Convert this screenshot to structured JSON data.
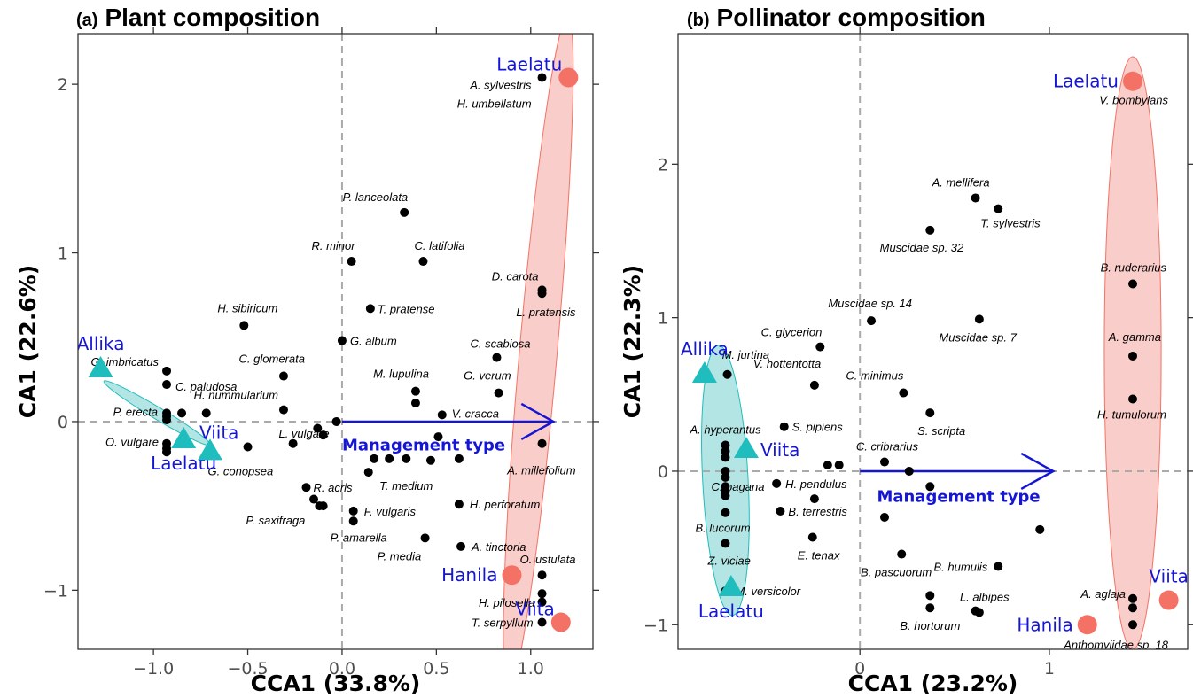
{
  "panels": [
    {
      "tag": "(a)",
      "title": "Plant composition"
    },
    {
      "tag": "(b)",
      "title": "Pollinator composition"
    }
  ],
  "colors": {
    "species_points": "#000000",
    "reference_sites": "#f47265",
    "reference_ellipse": "#f8c4c0",
    "managed_sites": "#1fbdbd",
    "managed_ellipse": "#a6e0df",
    "site_labels": "#1515d6",
    "arrow": "#1515d6",
    "zero_lines": "#aaaaaa"
  },
  "chart_data": [
    {
      "type": "scatter",
      "title": "Plant composition",
      "xlabel": "CCA1 (33.8%)",
      "ylabel": "CA1 (22.6%)",
      "xlim": [
        -1.4,
        1.33
      ],
      "ylim": [
        -1.35,
        2.3
      ],
      "xticks": [
        -1.0,
        -0.5,
        0.0,
        0.5,
        1.0
      ],
      "xtick_labels": [
        "−1.0",
        "−0.5",
        "0.0",
        "0.5",
        "1.0"
      ],
      "yticks": [
        -1,
        0,
        1,
        2
      ],
      "ytick_labels": [
        "−1",
        "0",
        "1",
        "2"
      ],
      "grid": false,
      "zero_lines": true,
      "arrow": {
        "label": "Management type",
        "x0": 0,
        "y0": 0,
        "x1": 1.12,
        "y1": 0
      },
      "species": [
        {
          "label": "A. sylvestris",
          "x": 1.06,
          "y": 2.04
        },
        {
          "label": "H. umbellatum",
          "x": null,
          "y": null
        },
        {
          "label": "P. lanceolata",
          "x": 0.33,
          "y": 1.24
        },
        {
          "label": "R. minor",
          "x": 0.05,
          "y": 0.95
        },
        {
          "label": "C. latifolia",
          "x": 0.43,
          "y": 0.95
        },
        {
          "label": "D. carota",
          "x": 1.06,
          "y": 0.78
        },
        {
          "label": "L. pratensis",
          "x": 1.06,
          "y": 0.76
        },
        {
          "label": "T. pratense",
          "x": 0.15,
          "y": 0.67
        },
        {
          "label": "H. sibiricum",
          "x": -0.52,
          "y": 0.57
        },
        {
          "label": "G. album",
          "x": 0.0,
          "y": 0.48
        },
        {
          "label": "C. scabiosa",
          "x": 0.82,
          "y": 0.38
        },
        {
          "label": "G. imbricatus",
          "x": -0.93,
          "y": 0.3
        },
        {
          "label": "C. glomerata",
          "x": -0.31,
          "y": 0.27
        },
        {
          "label": "C. paludosa",
          "x": -0.93,
          "y": 0.22
        },
        {
          "label": "M. lupulina",
          "x": 0.39,
          "y": 0.18
        },
        {
          "label": "G. verum",
          "x": 0.83,
          "y": 0.17
        },
        {
          "label": "H. nummularium",
          "x": -0.31,
          "y": 0.07
        },
        {
          "label": "P. erecta",
          "x": -0.93,
          "y": 0.05
        },
        {
          "label": "V. cracca",
          "x": 0.53,
          "y": 0.04
        },
        {
          "label": "L. vulgare",
          "x": -0.03,
          "y": 0.0
        },
        {
          "label": "O. vulgare",
          "x": -0.93,
          "y": -0.13
        },
        {
          "label": "G. conopsea",
          "x": -0.5,
          "y": -0.15
        },
        {
          "label": "A. millefolium",
          "x": 1.06,
          "y": -0.13
        },
        {
          "label": "T. medium",
          "x": 0.25,
          "y": -0.22
        },
        {
          "label": "R. acris",
          "x": -0.19,
          "y": -0.39
        },
        {
          "label": "P. saxifraga",
          "x": -0.12,
          "y": -0.5
        },
        {
          "label": "F. vulgaris",
          "x": 0.06,
          "y": -0.53
        },
        {
          "label": "P. amarella",
          "x": 0.06,
          "y": -0.59
        },
        {
          "label": "H. perforatum",
          "x": 0.62,
          "y": -0.49
        },
        {
          "label": "P. media",
          "x": 0.44,
          "y": -0.69
        },
        {
          "label": "A. tinctoria",
          "x": 0.63,
          "y": -0.74
        },
        {
          "label": "O. ustulata",
          "x": 1.06,
          "y": -0.91
        },
        {
          "label": "H. pilosella",
          "x": 1.06,
          "y": -1.02
        },
        {
          "label": "T. serpyllum",
          "x": 1.06,
          "y": -1.19
        }
      ],
      "extra_points": [
        {
          "x": -0.93,
          "y": 0.03
        },
        {
          "x": -0.93,
          "y": 0.01
        },
        {
          "x": -0.85,
          "y": 0.05
        },
        {
          "x": -0.72,
          "y": 0.05
        },
        {
          "x": -0.93,
          "y": -0.16
        },
        {
          "x": -0.93,
          "y": -0.18
        },
        {
          "x": -0.13,
          "y": -0.04
        },
        {
          "x": -0.1,
          "y": -0.08
        },
        {
          "x": -0.26,
          "y": -0.13
        },
        {
          "x": 0.39,
          "y": 0.11
        },
        {
          "x": 0.51,
          "y": -0.09
        },
        {
          "x": 0.17,
          "y": -0.22
        },
        {
          "x": 0.34,
          "y": -0.22
        },
        {
          "x": 0.47,
          "y": -0.23
        },
        {
          "x": 0.62,
          "y": -0.22
        },
        {
          "x": 0.14,
          "y": -0.3
        },
        {
          "x": -0.15,
          "y": -0.46
        },
        {
          "x": -0.1,
          "y": -0.5
        },
        {
          "x": 1.06,
          "y": -1.07
        }
      ],
      "sites": [
        {
          "group": "reference",
          "label": "Laelatu",
          "x": 1.2,
          "y": 2.04,
          "label_pos": "above-left"
        },
        {
          "group": "reference",
          "label": "Hanila",
          "x": 0.9,
          "y": -0.91,
          "label_pos": "left"
        },
        {
          "group": "reference",
          "label": "Viita",
          "x": 1.16,
          "y": -1.19,
          "label_pos": "above-left"
        },
        {
          "group": "managed",
          "label": "Allika",
          "x": -1.28,
          "y": 0.32,
          "label_pos": "above"
        },
        {
          "group": "managed",
          "label": "Laelatu",
          "x": -0.84,
          "y": -0.1,
          "label_pos": "below"
        },
        {
          "group": "managed",
          "label": "Viita",
          "x": -0.7,
          "y": -0.17,
          "label_pos": "above-right"
        }
      ],
      "ellipses": [
        {
          "group": "reference",
          "cx": 1.04,
          "cy": 0.41,
          "rx": 0.1,
          "ry": 2.0,
          "rotate_deg": 5
        },
        {
          "group": "managed",
          "cx": -0.98,
          "cy": 0.05,
          "rx": 0.33,
          "ry": 0.035,
          "rotate_deg": 31
        }
      ]
    },
    {
      "type": "scatter",
      "title": "Pollinator composition",
      "xlabel": "CCA1 (23.2%)",
      "ylabel": "CA1 (22.3%)",
      "xlim": [
        -0.96,
        1.73
      ],
      "ylim": [
        -1.16,
        2.85
      ],
      "xticks": [
        0,
        1
      ],
      "xtick_labels": [
        "0",
        "1"
      ],
      "yticks": [
        -1,
        0,
        1,
        2
      ],
      "ytick_labels": [
        "−1",
        "0",
        "1",
        "2"
      ],
      "grid": false,
      "zero_lines": true,
      "arrow": {
        "label": "Management type",
        "x0": 0,
        "y0": 0,
        "x1": 1.02,
        "y1": 0
      },
      "species": [
        {
          "label": "V. bombylans",
          "x": 1.44,
          "y": 2.54
        },
        {
          "label": "A. mellifera",
          "x": 0.61,
          "y": 1.78
        },
        {
          "label": "T. sylvestris",
          "x": 0.73,
          "y": 1.71
        },
        {
          "label": "Muscidae sp. 32",
          "x": 0.37,
          "y": 1.57
        },
        {
          "label": "B. ruderarius",
          "x": 1.44,
          "y": 1.22
        },
        {
          "label": "Muscidae sp. 14",
          "x": 0.06,
          "y": 0.98
        },
        {
          "label": "Muscidae sp. 7",
          "x": 0.63,
          "y": 0.99
        },
        {
          "label": "C. glycerion",
          "x": -0.21,
          "y": 0.81
        },
        {
          "label": "A. gamma",
          "x": 1.44,
          "y": 0.75
        },
        {
          "label": "M. jurtina",
          "x": -0.7,
          "y": 0.63
        },
        {
          "label": "V. hottentotta",
          "x": -0.24,
          "y": 0.56
        },
        {
          "label": "C. minimus",
          "x": 0.23,
          "y": 0.51
        },
        {
          "label": "H. tumulorum",
          "x": 1.44,
          "y": 0.47
        },
        {
          "label": "S. scripta",
          "x": 0.37,
          "y": 0.38
        },
        {
          "label": "S. pipiens",
          "x": -0.4,
          "y": 0.29
        },
        {
          "label": "A. hyperantus",
          "x": -0.71,
          "y": 0.17
        },
        {
          "label": "C. cribrarius",
          "x": 0.13,
          "y": 0.06
        },
        {
          "label": "C. pagana",
          "x": -0.71,
          "y": 0.0
        },
        {
          "label": "H. pendulus",
          "x": -0.44,
          "y": -0.08
        },
        {
          "label": "B. terrestris",
          "x": -0.42,
          "y": -0.26
        },
        {
          "label": "B. lucorum",
          "x": -0.71,
          "y": -0.27
        },
        {
          "label": "E. tenax",
          "x": -0.25,
          "y": -0.43
        },
        {
          "label": "Z. viciae",
          "x": -0.71,
          "y": -0.47
        },
        {
          "label": "B. pascuorum",
          "x": 0.22,
          "y": -0.54
        },
        {
          "label": "B. humulis",
          "x": 0.73,
          "y": -0.62
        },
        {
          "label": "M. versicolor",
          "x": -0.71,
          "y": -0.78
        },
        {
          "label": "L. albipes",
          "x": 0.61,
          "y": -0.91
        },
        {
          "label": "B. hortorum",
          "x": 0.37,
          "y": -0.89
        },
        {
          "label": "A. aglaja",
          "x": 1.44,
          "y": -0.83
        },
        {
          "label": "Anthomyiidae sp. 18",
          "x": 1.44,
          "y": -1.0
        }
      ],
      "extra_points": [
        {
          "x": -0.71,
          "y": 0.13
        },
        {
          "x": -0.71,
          "y": 0.09
        },
        {
          "x": -0.71,
          "y": -0.04
        },
        {
          "x": -0.71,
          "y": -0.1
        },
        {
          "x": -0.71,
          "y": -0.13
        },
        {
          "x": -0.71,
          "y": -0.16
        },
        {
          "x": -0.17,
          "y": 0.04
        },
        {
          "x": -0.11,
          "y": 0.04
        },
        {
          "x": -0.24,
          "y": -0.18
        },
        {
          "x": 0.26,
          "y": 0.0
        },
        {
          "x": 0.37,
          "y": -0.1
        },
        {
          "x": 0.13,
          "y": -0.3
        },
        {
          "x": 0.95,
          "y": -0.38
        },
        {
          "x": 0.37,
          "y": -0.81
        },
        {
          "x": 0.63,
          "y": -0.92
        },
        {
          "x": 1.44,
          "y": -0.89
        }
      ],
      "sites": [
        {
          "group": "reference",
          "label": "Laelatu",
          "x": 1.44,
          "y": 2.54,
          "label_pos": "left"
        },
        {
          "group": "reference",
          "label": "Hanila",
          "x": 1.2,
          "y": -1.0,
          "label_pos": "left"
        },
        {
          "group": "reference",
          "label": "Viita",
          "x": 1.63,
          "y": -0.84,
          "label_pos": "above"
        },
        {
          "group": "managed",
          "label": "Allika",
          "x": -0.82,
          "y": 0.64,
          "label_pos": "above"
        },
        {
          "group": "managed",
          "label": "Viita",
          "x": -0.6,
          "y": 0.15,
          "label_pos": "right"
        },
        {
          "group": "managed",
          "label": "Laelatu",
          "x": -0.68,
          "y": -0.75,
          "label_pos": "below"
        }
      ],
      "ellipses": [
        {
          "group": "reference",
          "cx": 1.44,
          "cy": 0.77,
          "rx": 0.15,
          "ry": 1.93,
          "rotate_deg": 0
        },
        {
          "group": "managed",
          "cx": -0.71,
          "cy": -0.06,
          "rx": 0.12,
          "ry": 0.88,
          "rotate_deg": -3
        }
      ]
    }
  ]
}
